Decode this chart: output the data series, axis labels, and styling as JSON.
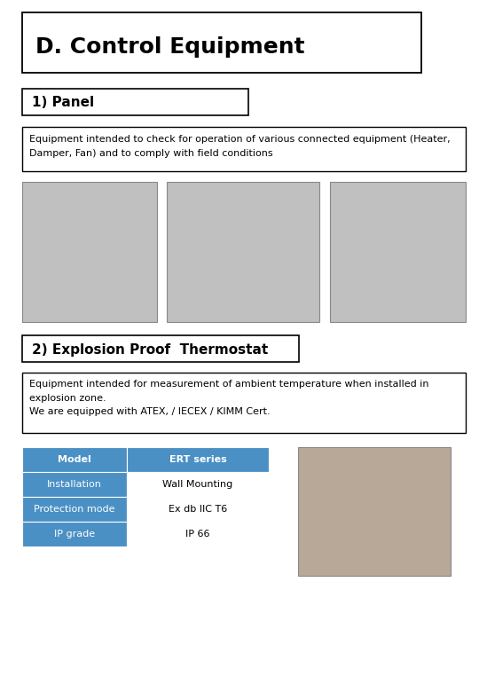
{
  "title": "D. Control Equipment",
  "section1_title": "1) Panel",
  "section1_desc": "Equipment intended to check for operation of various connected equipment (Heater,\nDamper, Fan) and to comply with field conditions",
  "section2_title": "2) Explosion Proof  Thermostat",
  "section2_desc": "Equipment intended for measurement of ambient temperature when installed in\nexplosion zone.\nWe are equipped with ATEX, / IECEX / KIMM Cert.",
  "table_rows": [
    {
      "label": "Model",
      "value": "ERT series"
    },
    {
      "label": "Installation",
      "value": "Wall Mounting"
    },
    {
      "label": "Protection mode",
      "value": "Ex db IIC T6"
    },
    {
      "label": "IP grade",
      "value": "IP 66"
    }
  ],
  "header_bg": "#4a90c4",
  "header_fg": "#ffffff",
  "row_label_bg": "#4a90c4",
  "row_label_fg": "#ffffff",
  "row_value_bg": "#ffffff",
  "row_value_fg": "#000000",
  "bg_color": "#ffffff",
  "border_color": "#000000",
  "title_fontsize": 18,
  "section_fontsize": 11,
  "desc_fontsize": 8,
  "table_fontsize": 8,
  "img1_color": "#c0c0c0",
  "img2_color": "#c0c0c0",
  "img3_color": "#c0c0c0",
  "img4_color": "#b8a898"
}
